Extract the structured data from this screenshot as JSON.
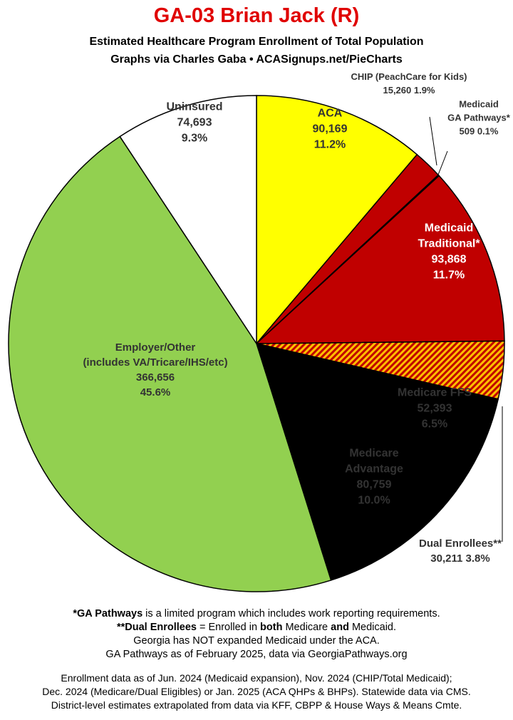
{
  "title": "GA-03 Brian Jack (R)",
  "subtitle_line1": "Estimated Healthcare Program Enrollment of Total Population",
  "subtitle_line2": "Graphs via Charles Gaba  •  ACASignups.net/PieCharts",
  "colors": {
    "aca": "#ffff00",
    "chip": "#c00000",
    "pathways": "#c00000",
    "medicaid": "#c00000",
    "dual_stripe_a": "#c00000",
    "dual_stripe_b": "#ffc000",
    "medicare": "#ffc000",
    "employer": "#92d050",
    "uninsured": "#ffffff",
    "title": "#e00000"
  },
  "chart_data": {
    "type": "pie",
    "slices": [
      {
        "key": "aca",
        "label": [
          "ACA"
        ],
        "value": 90169,
        "value_text": "90,169",
        "percent": "11.2%"
      },
      {
        "key": "chip",
        "label": [
          "CHIP (PeachCare for Kids)"
        ],
        "value": 15260,
        "value_text": "15,260 1.9%",
        "percent": ""
      },
      {
        "key": "pathways",
        "label": [
          "Medicaid",
          "GA Pathways*"
        ],
        "value": 509,
        "value_text": "509 0.1%",
        "percent": ""
      },
      {
        "key": "medicaid",
        "label": [
          "Medicaid",
          "Traditional*"
        ],
        "value": 93868,
        "value_text": "93,868",
        "percent": "11.7%"
      },
      {
        "key": "dual",
        "label": [
          "Dual Enrollees**"
        ],
        "value": 30211,
        "value_text": "30,211 3.8%",
        "percent": ""
      },
      {
        "key": "medicare_ffs",
        "label": [
          "Medicare FFS"
        ],
        "value": 52393,
        "value_text": "52,393",
        "percent": "6.5%"
      },
      {
        "key": "medicare_adv",
        "label": [
          "Medicare",
          "Advantage"
        ],
        "value": 80759,
        "value_text": "80,759",
        "percent": "10.0%"
      },
      {
        "key": "employer",
        "label": [
          "Employer/Other",
          "(includes VA/Tricare/IHS/etc)"
        ],
        "value": 366656,
        "value_text": "366,656",
        "percent": "45.6%"
      },
      {
        "key": "uninsured",
        "label": [
          "Uninsured"
        ],
        "value": 74693,
        "value_text": "74,693",
        "percent": "9.3%"
      }
    ]
  },
  "notes": {
    "line1_bold": "*GA Pathways",
    "line1_rest": " is a limited program which includes work reporting requirements.",
    "line2_bold1": "**Dual Enrollees",
    "line2_mid1": " = Enrolled in ",
    "line2_bold2": "both",
    "line2_mid2": " Medicare ",
    "line2_bold3": "and",
    "line2_rest": " Medicaid.",
    "line3": "Georgia has NOT expanded Medicaid under the ACA.",
    "line4": "GA Pathways as of February 2025, data via GeorgiaPathways.org",
    "source1": "Enrollment data as of Jun. 2024 (Medicaid expansion), Nov. 2024 (CHIP/Total Medicaid);",
    "source2": "Dec. 2024 (Medicare/Dual Eligibles) or Jan. 2025 (ACA QHPs & BHPs). Statewide data via CMS.",
    "source3": "District-level estimates extrapolated from data via KFF, CBPP & House Ways & Means Cmte."
  }
}
